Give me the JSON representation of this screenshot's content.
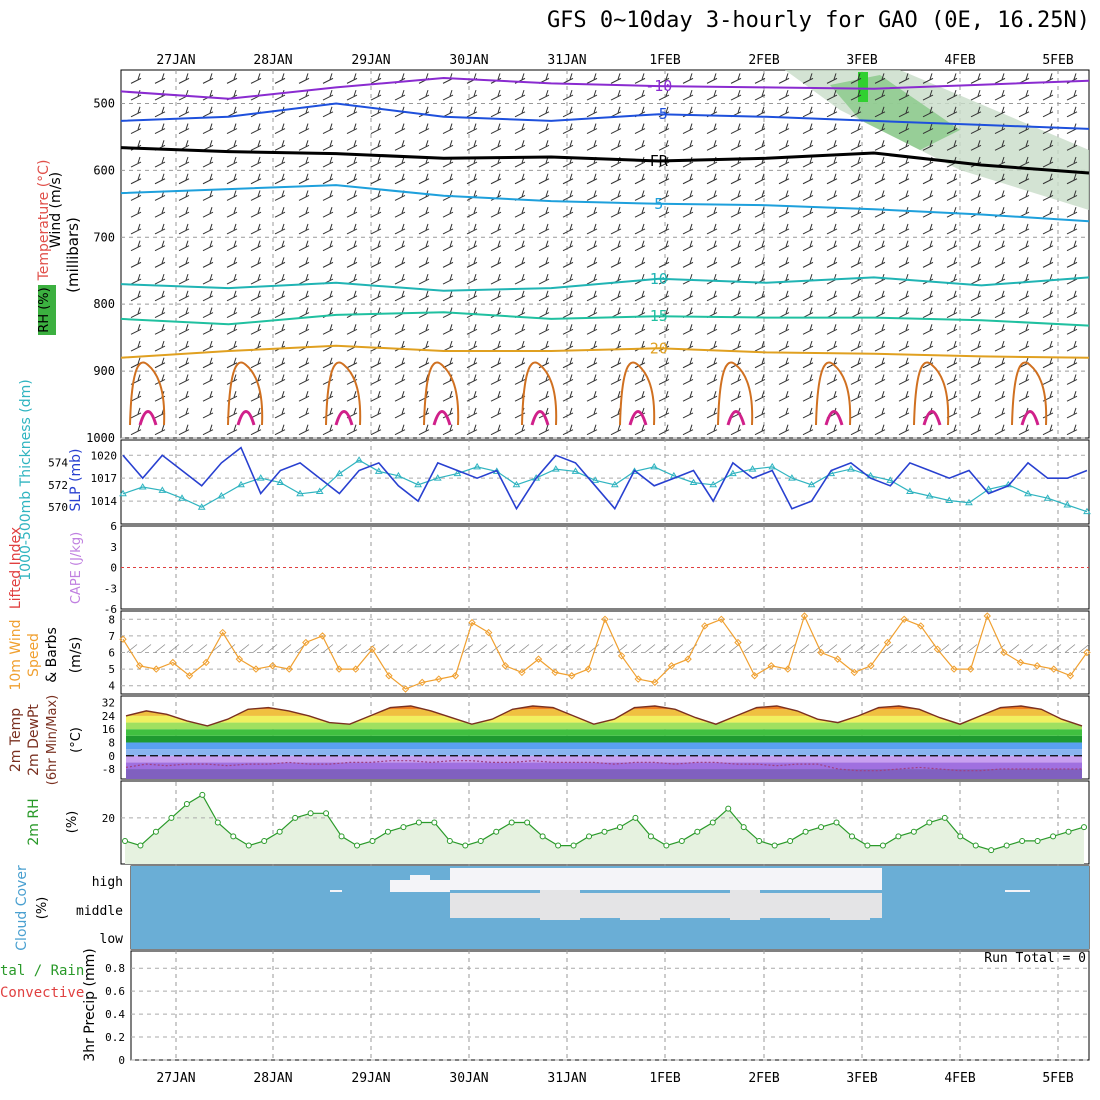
{
  "title": "GFS 0~10day 3-hourly for GAO (0E, 16.25N)",
  "dates": [
    "27JAN",
    "28JAN",
    "29JAN",
    "30JAN",
    "31JAN",
    "1FEB",
    "2FEB",
    "3FEB",
    "4FEB",
    "5FEB"
  ],
  "panel_labels": {
    "upper_wind": "Wind (m/s)",
    "upper_temp": "Temperature (°C)",
    "upper_rh": "RH (%)",
    "upper_pressure_unit": "(millibars)",
    "thickness": "1000-500mb Thickness (dm)",
    "slp": "SLP (mb)",
    "lifted": "Lifted Index",
    "cape": "CAPE (J/kg)",
    "wind10_a": "10m Wind",
    "wind10_b": "Speed",
    "wind10_c": "& Barbs",
    "wind10_unit": "(m/s)",
    "temp_a": "2m Temp",
    "temp_b": "2m DewPt",
    "temp_c": "(6hr Min/Max)",
    "temp_unit": "(°C)",
    "rh2m": "2m RH",
    "rh_unit": "(%)",
    "cloud": "Cloud Cover",
    "cloud_unit": "(%)",
    "cloud_levels": [
      "high",
      "middle",
      "low"
    ],
    "precip_a": "tal / Rain",
    "precip_b": "Convective",
    "precip_c": "3hr Precip (mm)",
    "run_total": "Run Total = 0"
  },
  "colors": {
    "purple": "#8a2bd0",
    "blue": "#1e50dc",
    "cyan": "#1ea0dc",
    "teal": "#20b4b4",
    "green": "#20c0a0",
    "orange": "#e0a020",
    "darkorange": "#d07020",
    "magenta": "#d0208a",
    "slp": "#2840d0",
    "thick": "#30b4c0",
    "wind10": "#f0a030",
    "rh2m": "#2a9a2a",
    "cloud_blue": "#6aaed6",
    "cloud_white": "#f4f4f8",
    "cloud_gray": "#e4e4e6"
  },
  "chart_data": [
    {
      "type": "line",
      "panel": "upper-air cross section",
      "ylabel": "millibars",
      "y_ticks": [
        500,
        600,
        700,
        800,
        900,
        1000
      ],
      "ylim": [
        450,
        1000
      ],
      "isotherm_labels": [
        {
          "text": "-10",
          "value": -10
        },
        {
          "text": "-5",
          "value": -5
        },
        {
          "text": "FR",
          "value": 0
        },
        {
          "text": "5",
          "value": 5
        },
        {
          "text": "10",
          "value": 10
        },
        {
          "text": "15",
          "value": 15
        },
        {
          "text": "20",
          "value": 20
        }
      ],
      "series": [
        {
          "name": "-10",
          "pressure": [
            482,
            493,
            476,
            462,
            470,
            474,
            476,
            478,
            472,
            466
          ]
        },
        {
          "name": "-5",
          "pressure": [
            526,
            520,
            500,
            520,
            526,
            516,
            520,
            526,
            532,
            538
          ]
        },
        {
          "name": "FR",
          "pressure": [
            566,
            572,
            575,
            582,
            580,
            586,
            582,
            574,
            592,
            604
          ]
        },
        {
          "name": "5",
          "pressure": [
            634,
            628,
            622,
            638,
            646,
            650,
            652,
            658,
            666,
            676
          ]
        },
        {
          "name": "10",
          "pressure": [
            770,
            776,
            768,
            780,
            776,
            762,
            768,
            760,
            772,
            760
          ]
        },
        {
          "name": "15",
          "pressure": [
            822,
            830,
            816,
            812,
            822,
            818,
            820,
            820,
            824,
            832
          ]
        },
        {
          "name": "20",
          "pressure": [
            880,
            870,
            862,
            870,
            870,
            866,
            872,
            874,
            878,
            880
          ]
        }
      ]
    },
    {
      "type": "line",
      "panel": "thickness and slp",
      "thickness_ticks": [
        574,
        572,
        570
      ],
      "slp_ticks": [
        1020,
        1017,
        1014
      ],
      "series": [
        {
          "name": "SLP (mb)",
          "values": [
            1020,
            1017,
            1020,
            1018,
            1016,
            1019,
            1021,
            1015,
            1018,
            1019,
            1017,
            1015,
            1018,
            1019,
            1016,
            1014,
            1019,
            1018,
            1017,
            1018,
            1013,
            1017,
            1020,
            1019,
            1016,
            1013,
            1018,
            1016,
            1017,
            1018,
            1014,
            1019,
            1017,
            1018,
            1013,
            1014,
            1018,
            1019,
            1017,
            1016,
            1019,
            1018,
            1017,
            1018,
            1015,
            1016,
            1019,
            1017,
            1017,
            1018
          ]
        },
        {
          "name": "1000-500mb Thickness (dm)",
          "values": [
            571.2,
            571.8,
            571.5,
            570.8,
            570.0,
            571.0,
            572.0,
            572.6,
            572.2,
            571.2,
            571.4,
            573.0,
            574.2,
            573.2,
            572.8,
            572.0,
            572.6,
            573.0,
            573.6,
            573.2,
            572.0,
            572.6,
            573.4,
            573.2,
            572.4,
            572.0,
            573.2,
            573.6,
            572.8,
            572.2,
            572.0,
            573.0,
            573.4,
            573.6,
            572.6,
            572.0,
            573.0,
            573.4,
            572.8,
            572.4,
            571.4,
            571.0,
            570.6,
            570.4,
            571.6,
            572.0,
            571.2,
            570.8,
            570.2,
            569.6
          ]
        }
      ]
    },
    {
      "type": "line",
      "panel": "lifted index and cape",
      "y_ticks": [
        6,
        3,
        0,
        -3,
        -6
      ],
      "y_tick_labels": [
        "-6",
        "-3",
        "0",
        "3",
        "6"
      ],
      "values": []
    },
    {
      "type": "line",
      "panel": "10m wind speed",
      "y_ticks": [
        4,
        5,
        6,
        7,
        8
      ],
      "ylim": [
        3.5,
        8.5
      ],
      "values": [
        6.8,
        5.2,
        5.0,
        5.4,
        4.6,
        5.4,
        7.2,
        5.6,
        5.0,
        5.2,
        5.0,
        6.6,
        7.0,
        5.0,
        5.0,
        6.2,
        4.6,
        3.8,
        4.2,
        4.4,
        4.6,
        7.8,
        7.2,
        5.2,
        4.8,
        5.6,
        4.8,
        4.6,
        5.0,
        8.0,
        5.8,
        4.4,
        4.2,
        5.2,
        5.6,
        7.6,
        8.0,
        6.6,
        4.6,
        5.2,
        5.0,
        8.2,
        6.0,
        5.6,
        4.8,
        5.2,
        6.6,
        8.0,
        7.6,
        6.2,
        5.0,
        5.0,
        8.2,
        6.0,
        5.4,
        5.2,
        5.0,
        4.6,
        6.0
      ]
    },
    {
      "type": "area",
      "panel": "2m temperature and dewpoint",
      "y_ticks": [
        -8,
        0,
        8,
        16,
        24,
        32
      ],
      "ylim": [
        -14,
        36
      ],
      "series": [
        {
          "name": "2m Temp",
          "values": [
            24,
            27,
            25,
            21,
            18,
            22,
            28,
            29,
            27,
            24,
            20,
            19,
            24,
            29,
            30,
            27,
            23,
            19,
            22,
            28,
            30,
            29,
            24,
            19,
            22,
            29,
            30,
            28,
            23,
            19,
            24,
            29,
            30,
            27,
            22,
            20,
            24,
            29,
            30,
            28,
            23,
            19,
            24,
            29,
            30,
            28,
            22,
            18
          ]
        },
        {
          "name": "2m DewPt",
          "values": [
            -7,
            -5,
            -6,
            -5,
            -5,
            -6,
            -5,
            -5,
            -4,
            -5,
            -5,
            -4,
            -4,
            -3,
            -3,
            -4,
            -3,
            -3,
            -4,
            -4,
            -3,
            -4,
            -4,
            -4,
            -5,
            -4,
            -4,
            -5,
            -4,
            -4,
            -5,
            -5,
            -6,
            -5,
            -5,
            -8,
            -9,
            -9,
            -8,
            -7,
            -8,
            -9,
            -9,
            -8,
            -8,
            -8,
            -8,
            -8
          ]
        }
      ]
    },
    {
      "type": "area",
      "panel": "2m relative humidity",
      "y_ticks": [
        20
      ],
      "ylim": [
        0,
        36
      ],
      "values": [
        10,
        8,
        14,
        20,
        26,
        30,
        18,
        12,
        8,
        10,
        14,
        20,
        22,
        22,
        12,
        8,
        10,
        14,
        16,
        18,
        18,
        10,
        8,
        10,
        14,
        18,
        18,
        12,
        8,
        8,
        12,
        14,
        16,
        20,
        12,
        8,
        10,
        14,
        18,
        24,
        16,
        10,
        8,
        10,
        14,
        16,
        18,
        12,
        8,
        8,
        12,
        14,
        18,
        20,
        12,
        8,
        6,
        8,
        10,
        10,
        12,
        14,
        16
      ]
    },
    {
      "type": "heatmap",
      "panel": "cloud cover",
      "rows": [
        "high",
        "middle",
        "low"
      ],
      "values": []
    },
    {
      "type": "bar",
      "panel": "3hr precip",
      "y_ticks": [
        0,
        0.2,
        0.4,
        0.6,
        0.8
      ],
      "ylim": [
        0,
        0.95
      ],
      "values": []
    }
  ]
}
